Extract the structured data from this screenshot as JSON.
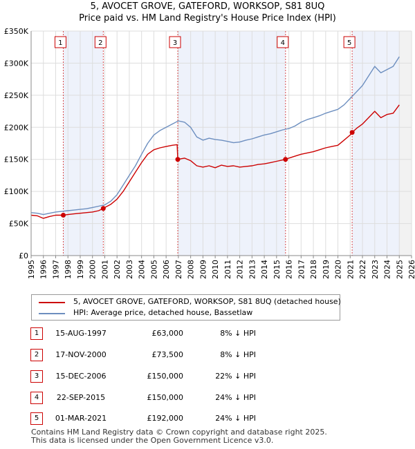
{
  "title_line1": "5, AVOCET GROVE, GATEFORD, WORKSOP, S81 8UQ",
  "title_line2": "Price paid vs. HM Land Registry's House Price Index (HPI)",
  "colors": {
    "price": "#cc0000",
    "hpi": "#6c8ebf",
    "shade": "#eef2fb",
    "grid": "#dddddd"
  },
  "legend": {
    "price_label": "5, AVOCET GROVE, GATEFORD, WORKSOP, S81 8UQ (detached house)",
    "hpi_label": "HPI: Average price, detached house, Bassetlaw"
  },
  "sales": [
    {
      "num": "1",
      "date": "15-AUG-1997",
      "price": "£63,000",
      "hpi": "8% ↓ HPI"
    },
    {
      "num": "2",
      "date": "17-NOV-2000",
      "price": "£73,500",
      "hpi": "8% ↓ HPI"
    },
    {
      "num": "3",
      "date": "15-DEC-2006",
      "price": "£150,000",
      "hpi": "22% ↓ HPI"
    },
    {
      "num": "4",
      "date": "22-SEP-2015",
      "price": "£150,000",
      "hpi": "24% ↓ HPI"
    },
    {
      "num": "5",
      "date": "01-MAR-2021",
      "price": "£192,000",
      "hpi": "24% ↓ HPI"
    }
  ],
  "footer": {
    "line1": "Contains HM Land Registry data © Crown copyright and database right 2025.",
    "line2": "This data is licensed under the Open Government Licence v3.0."
  },
  "chart_data": {
    "type": "line",
    "title": "Price paid vs. HM Land Registry's House Price Index (HPI)",
    "xlim": [
      1995,
      2026
    ],
    "ylim": [
      0,
      350000
    ],
    "x_ticks": [
      "1995",
      "1996",
      "1997",
      "1998",
      "1999",
      "2000",
      "2001",
      "2002",
      "2003",
      "2004",
      "2005",
      "2006",
      "2007",
      "2008",
      "2009",
      "2010",
      "2011",
      "2012",
      "2013",
      "2014",
      "2015",
      "2016",
      "2017",
      "2018",
      "2019",
      "2020",
      "2021",
      "2022",
      "2023",
      "2024",
      "2025",
      "2026"
    ],
    "y_ticks": [
      0,
      50000,
      100000,
      150000,
      200000,
      250000,
      300000,
      350000
    ],
    "y_tick_labels": [
      "£0",
      "£50K",
      "£100K",
      "£150K",
      "£200K",
      "£250K",
      "£300K",
      "£350K"
    ],
    "shaded_ranges": [
      [
        1997.62,
        2000.88
      ],
      [
        2006.95,
        2015.73
      ],
      [
        2021.16,
        2025.0
      ]
    ],
    "forecast_start": 2025.0,
    "sale_points": [
      {
        "label": "1",
        "x": 1997.62,
        "y": 63000
      },
      {
        "label": "2",
        "x": 2000.88,
        "y": 73500
      },
      {
        "label": "3",
        "x": 2006.95,
        "y": 150000
      },
      {
        "label": "4",
        "x": 2015.73,
        "y": 150000
      },
      {
        "label": "5",
        "x": 2021.16,
        "y": 192000
      }
    ],
    "series": [
      {
        "name": "5, AVOCET GROVE, GATEFORD, WORKSOP, S81 8UQ (detached house)",
        "x": [
          1995,
          1995.5,
          1996,
          1996.5,
          1997,
          1997.62,
          1998,
          1998.5,
          1999,
          1999.5,
          2000,
          2000.5,
          2000.88,
          2001,
          2001.5,
          2002,
          2002.5,
          2003,
          2003.5,
          2004,
          2004.5,
          2005,
          2005.5,
          2006,
          2006.5,
          2006.9,
          2006.95,
          2007.5,
          2008,
          2008.5,
          2009,
          2009.5,
          2010,
          2010.5,
          2011,
          2011.5,
          2012,
          2012.5,
          2013,
          2013.5,
          2014,
          2014.5,
          2015,
          2015.5,
          2015.73,
          2016,
          2016.5,
          2017,
          2017.5,
          2018,
          2018.5,
          2019,
          2019.5,
          2020,
          2020.5,
          2021,
          2021.16,
          2021.5,
          2022,
          2022.5,
          2023,
          2023.5,
          2024,
          2024.5,
          2025
        ],
        "y": [
          63000,
          62000,
          58000,
          61000,
          63000,
          63000,
          64000,
          65000,
          66000,
          67000,
          68000,
          70000,
          73500,
          75000,
          80000,
          88000,
          100000,
          115000,
          130000,
          145000,
          158000,
          165000,
          168000,
          170000,
          172000,
          173000,
          150000,
          152000,
          148000,
          140000,
          138000,
          140000,
          137000,
          141000,
          139000,
          140000,
          138000,
          139000,
          140000,
          142000,
          143000,
          145000,
          147000,
          149000,
          150000,
          152000,
          155000,
          158000,
          160000,
          162000,
          165000,
          168000,
          170000,
          172000,
          180000,
          188000,
          192000,
          198000,
          205000,
          215000,
          225000,
          215000,
          220000,
          222000,
          235000
        ]
      },
      {
        "name": "HPI: Average price, detached house, Bassetlaw",
        "x": [
          1995,
          1995.5,
          1996,
          1996.5,
          1997,
          1997.5,
          1998,
          1998.5,
          1999,
          1999.5,
          2000,
          2000.5,
          2001,
          2001.5,
          2002,
          2002.5,
          2003,
          2003.5,
          2004,
          2004.5,
          2005,
          2005.5,
          2006,
          2006.5,
          2007,
          2007.5,
          2008,
          2008.5,
          2009,
          2009.5,
          2010,
          2010.5,
          2011,
          2011.5,
          2012,
          2012.5,
          2013,
          2013.5,
          2014,
          2014.5,
          2015,
          2015.5,
          2016,
          2016.5,
          2017,
          2017.5,
          2018,
          2018.5,
          2019,
          2019.5,
          2020,
          2020.5,
          2021,
          2021.5,
          2022,
          2022.5,
          2023,
          2023.5,
          2024,
          2024.5,
          2025
        ],
        "y": [
          67000,
          66000,
          64000,
          66000,
          68000,
          69000,
          70000,
          71000,
          72000,
          73000,
          75000,
          77000,
          79000,
          85000,
          95000,
          110000,
          125000,
          140000,
          158000,
          175000,
          188000,
          195000,
          200000,
          205000,
          210000,
          208000,
          200000,
          185000,
          180000,
          183000,
          181000,
          180000,
          178000,
          176000,
          177000,
          180000,
          182000,
          185000,
          188000,
          190000,
          193000,
          196000,
          198000,
          202000,
          208000,
          212000,
          215000,
          218000,
          222000,
          225000,
          228000,
          235000,
          245000,
          255000,
          265000,
          280000,
          295000,
          285000,
          290000,
          295000,
          310000
        ]
      }
    ]
  }
}
